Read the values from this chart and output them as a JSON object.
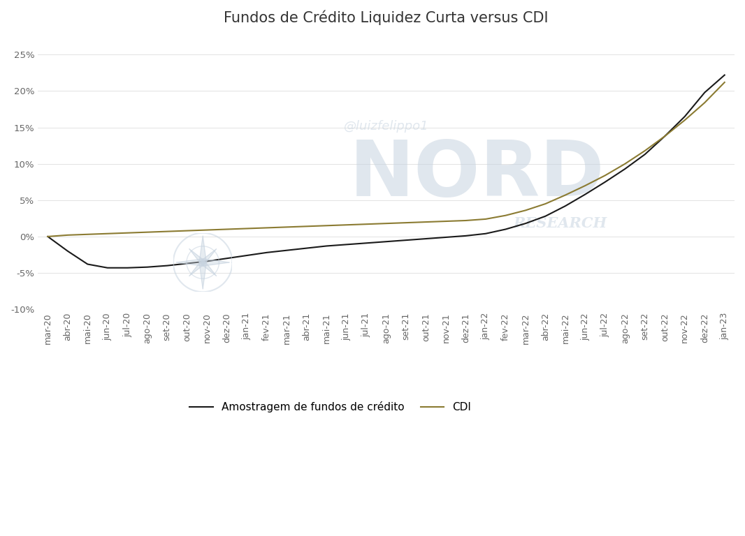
{
  "title": "Fundos de Crédito Liquidez Curta versus CDI",
  "ylim": [
    -0.1,
    0.27
  ],
  "yticks": [
    -0.1,
    -0.05,
    0.0,
    0.05,
    0.1,
    0.15,
    0.2,
    0.25
  ],
  "ytick_labels": [
    "-10%",
    "-5%",
    "0%",
    "5%",
    "10%",
    "15%",
    "20%",
    "25%"
  ],
  "x_labels": [
    "mar-20",
    "abr-20",
    "mai-20",
    "jun-20",
    "jul-20",
    "ago-20",
    "set-20",
    "out-20",
    "nov-20",
    "dez-20",
    "jan-21",
    "fev-21",
    "mar-21",
    "abr-21",
    "mai-21",
    "jun-21",
    "jul-21",
    "ago-21",
    "set-21",
    "out-21",
    "nov-21",
    "dez-21",
    "jan-22",
    "fev-22",
    "mar-22",
    "abr-22",
    "mai-22",
    "jun-22",
    "jul-22",
    "ago-22",
    "set-22",
    "out-22",
    "nov-22",
    "dez-22",
    "jan-23"
  ],
  "fund_values": [
    0.0,
    -0.02,
    -0.038,
    -0.043,
    -0.043,
    -0.042,
    -0.04,
    -0.037,
    -0.034,
    -0.03,
    -0.026,
    -0.022,
    -0.019,
    -0.016,
    -0.013,
    -0.011,
    -0.009,
    -0.007,
    -0.005,
    -0.003,
    -0.001,
    0.001,
    0.004,
    0.01,
    0.018,
    0.028,
    0.042,
    0.058,
    0.075,
    0.093,
    0.113,
    0.138,
    0.165,
    0.198,
    0.222
  ],
  "cdi_values": [
    0.0,
    0.002,
    0.003,
    0.004,
    0.005,
    0.006,
    0.007,
    0.008,
    0.009,
    0.01,
    0.011,
    0.012,
    0.013,
    0.014,
    0.015,
    0.016,
    0.017,
    0.018,
    0.019,
    0.02,
    0.021,
    0.022,
    0.024,
    0.029,
    0.036,
    0.045,
    0.057,
    0.07,
    0.084,
    0.1,
    0.118,
    0.138,
    0.16,
    0.184,
    0.212
  ],
  "fund_color": "#1a1a1a",
  "cdi_color": "#8B7B32",
  "fund_linewidth": 1.5,
  "cdi_linewidth": 1.5,
  "legend_labels": [
    "Amostragem de fundos de crédito",
    "CDI"
  ],
  "background_color": "#ffffff",
  "watermark_color": "#c8d4e0",
  "watermark_alpha": 0.55,
  "title_fontsize": 15,
  "tick_fontsize": 9.5,
  "legend_fontsize": 11
}
